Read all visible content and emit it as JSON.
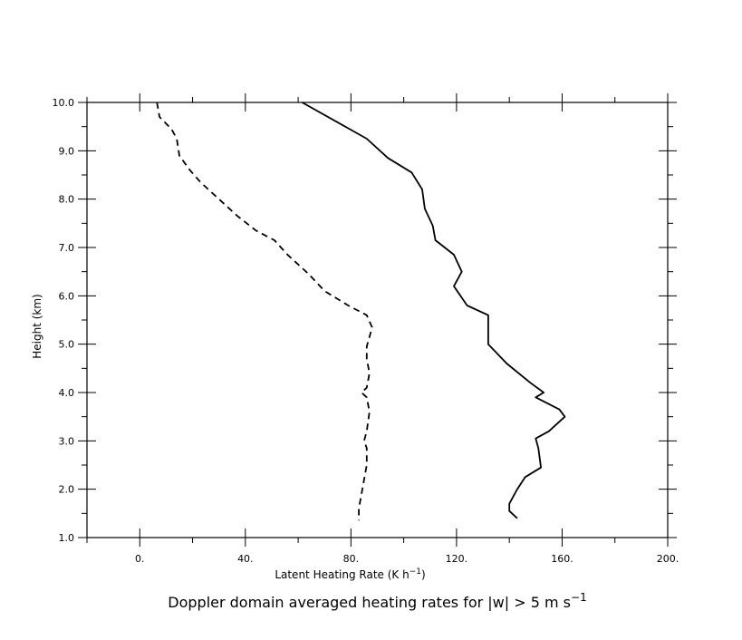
{
  "chart_data": {
    "type": "line",
    "title": {
      "prefix": "Doppler domain averaged heating rates for |w| > 5 m s",
      "superscript": "−1"
    },
    "xlabel": {
      "prefix": "Latent Heating Rate (K h",
      "superscript": "−1",
      "suffix": ")"
    },
    "ylabel": "Height (km)",
    "xlim": [
      -20,
      200
    ],
    "ylim": [
      1.0,
      10.0
    ],
    "x_ticks": [
      0,
      40,
      80,
      120,
      160,
      200
    ],
    "x_tick_labels": [
      "0.",
      "40.",
      "80.",
      "120.",
      "160.",
      "200."
    ],
    "y_ticks": [
      1,
      2,
      3,
      4,
      5,
      6,
      7,
      8,
      9,
      10
    ],
    "y_tick_labels": [
      "1.0",
      "2.0",
      "3.0",
      "4.0",
      "5.0",
      "6.0",
      "7.0",
      "8.0",
      "9.0",
      "10.0"
    ],
    "x_minor_step": 20,
    "y_minor_step": 0.5,
    "grid": false,
    "series": [
      {
        "style": "solid",
        "color": "#000000",
        "points": [
          [
            61.5,
            10.0
          ],
          [
            86,
            9.25
          ],
          [
            94,
            8.85
          ],
          [
            103,
            8.55
          ],
          [
            107,
            8.2
          ],
          [
            108,
            7.8
          ],
          [
            111,
            7.45
          ],
          [
            112,
            7.15
          ],
          [
            119,
            6.85
          ],
          [
            122,
            6.5
          ],
          [
            119,
            6.2
          ],
          [
            124,
            5.8
          ],
          [
            132,
            5.6
          ],
          [
            132,
            5.0
          ],
          [
            139,
            4.6
          ],
          [
            148,
            4.2
          ],
          [
            153,
            4.0
          ],
          [
            150,
            3.9
          ],
          [
            159,
            3.65
          ],
          [
            161,
            3.5
          ],
          [
            155,
            3.2
          ],
          [
            150,
            3.05
          ],
          [
            151,
            2.85
          ],
          [
            152,
            2.45
          ],
          [
            146,
            2.25
          ],
          [
            143,
            2.0
          ],
          [
            140,
            1.7
          ],
          [
            140,
            1.55
          ],
          [
            143,
            1.4
          ]
        ]
      },
      {
        "style": "dashed",
        "color": "#000000",
        "points": [
          [
            6.5,
            10.0
          ],
          [
            7.5,
            9.7
          ],
          [
            12,
            9.45
          ],
          [
            14,
            9.25
          ],
          [
            15,
            8.9
          ],
          [
            19,
            8.6
          ],
          [
            23,
            8.35
          ],
          [
            30,
            8.0
          ],
          [
            37,
            7.65
          ],
          [
            44,
            7.35
          ],
          [
            51,
            7.15
          ],
          [
            56,
            6.85
          ],
          [
            60,
            6.65
          ],
          [
            64,
            6.45
          ],
          [
            70,
            6.1
          ],
          [
            79,
            5.8
          ],
          [
            86,
            5.6
          ],
          [
            88,
            5.35
          ],
          [
            87,
            5.15
          ],
          [
            86,
            4.95
          ],
          [
            86,
            4.7
          ],
          [
            87,
            4.4
          ],
          [
            86,
            4.1
          ],
          [
            84,
            4.0
          ],
          [
            86,
            3.9
          ],
          [
            87,
            3.6
          ],
          [
            86,
            3.2
          ],
          [
            85,
            3.0
          ],
          [
            86,
            2.85
          ],
          [
            86,
            2.5
          ],
          [
            85,
            2.2
          ],
          [
            84,
            1.9
          ],
          [
            83,
            1.6
          ],
          [
            83,
            1.35
          ]
        ]
      }
    ]
  }
}
